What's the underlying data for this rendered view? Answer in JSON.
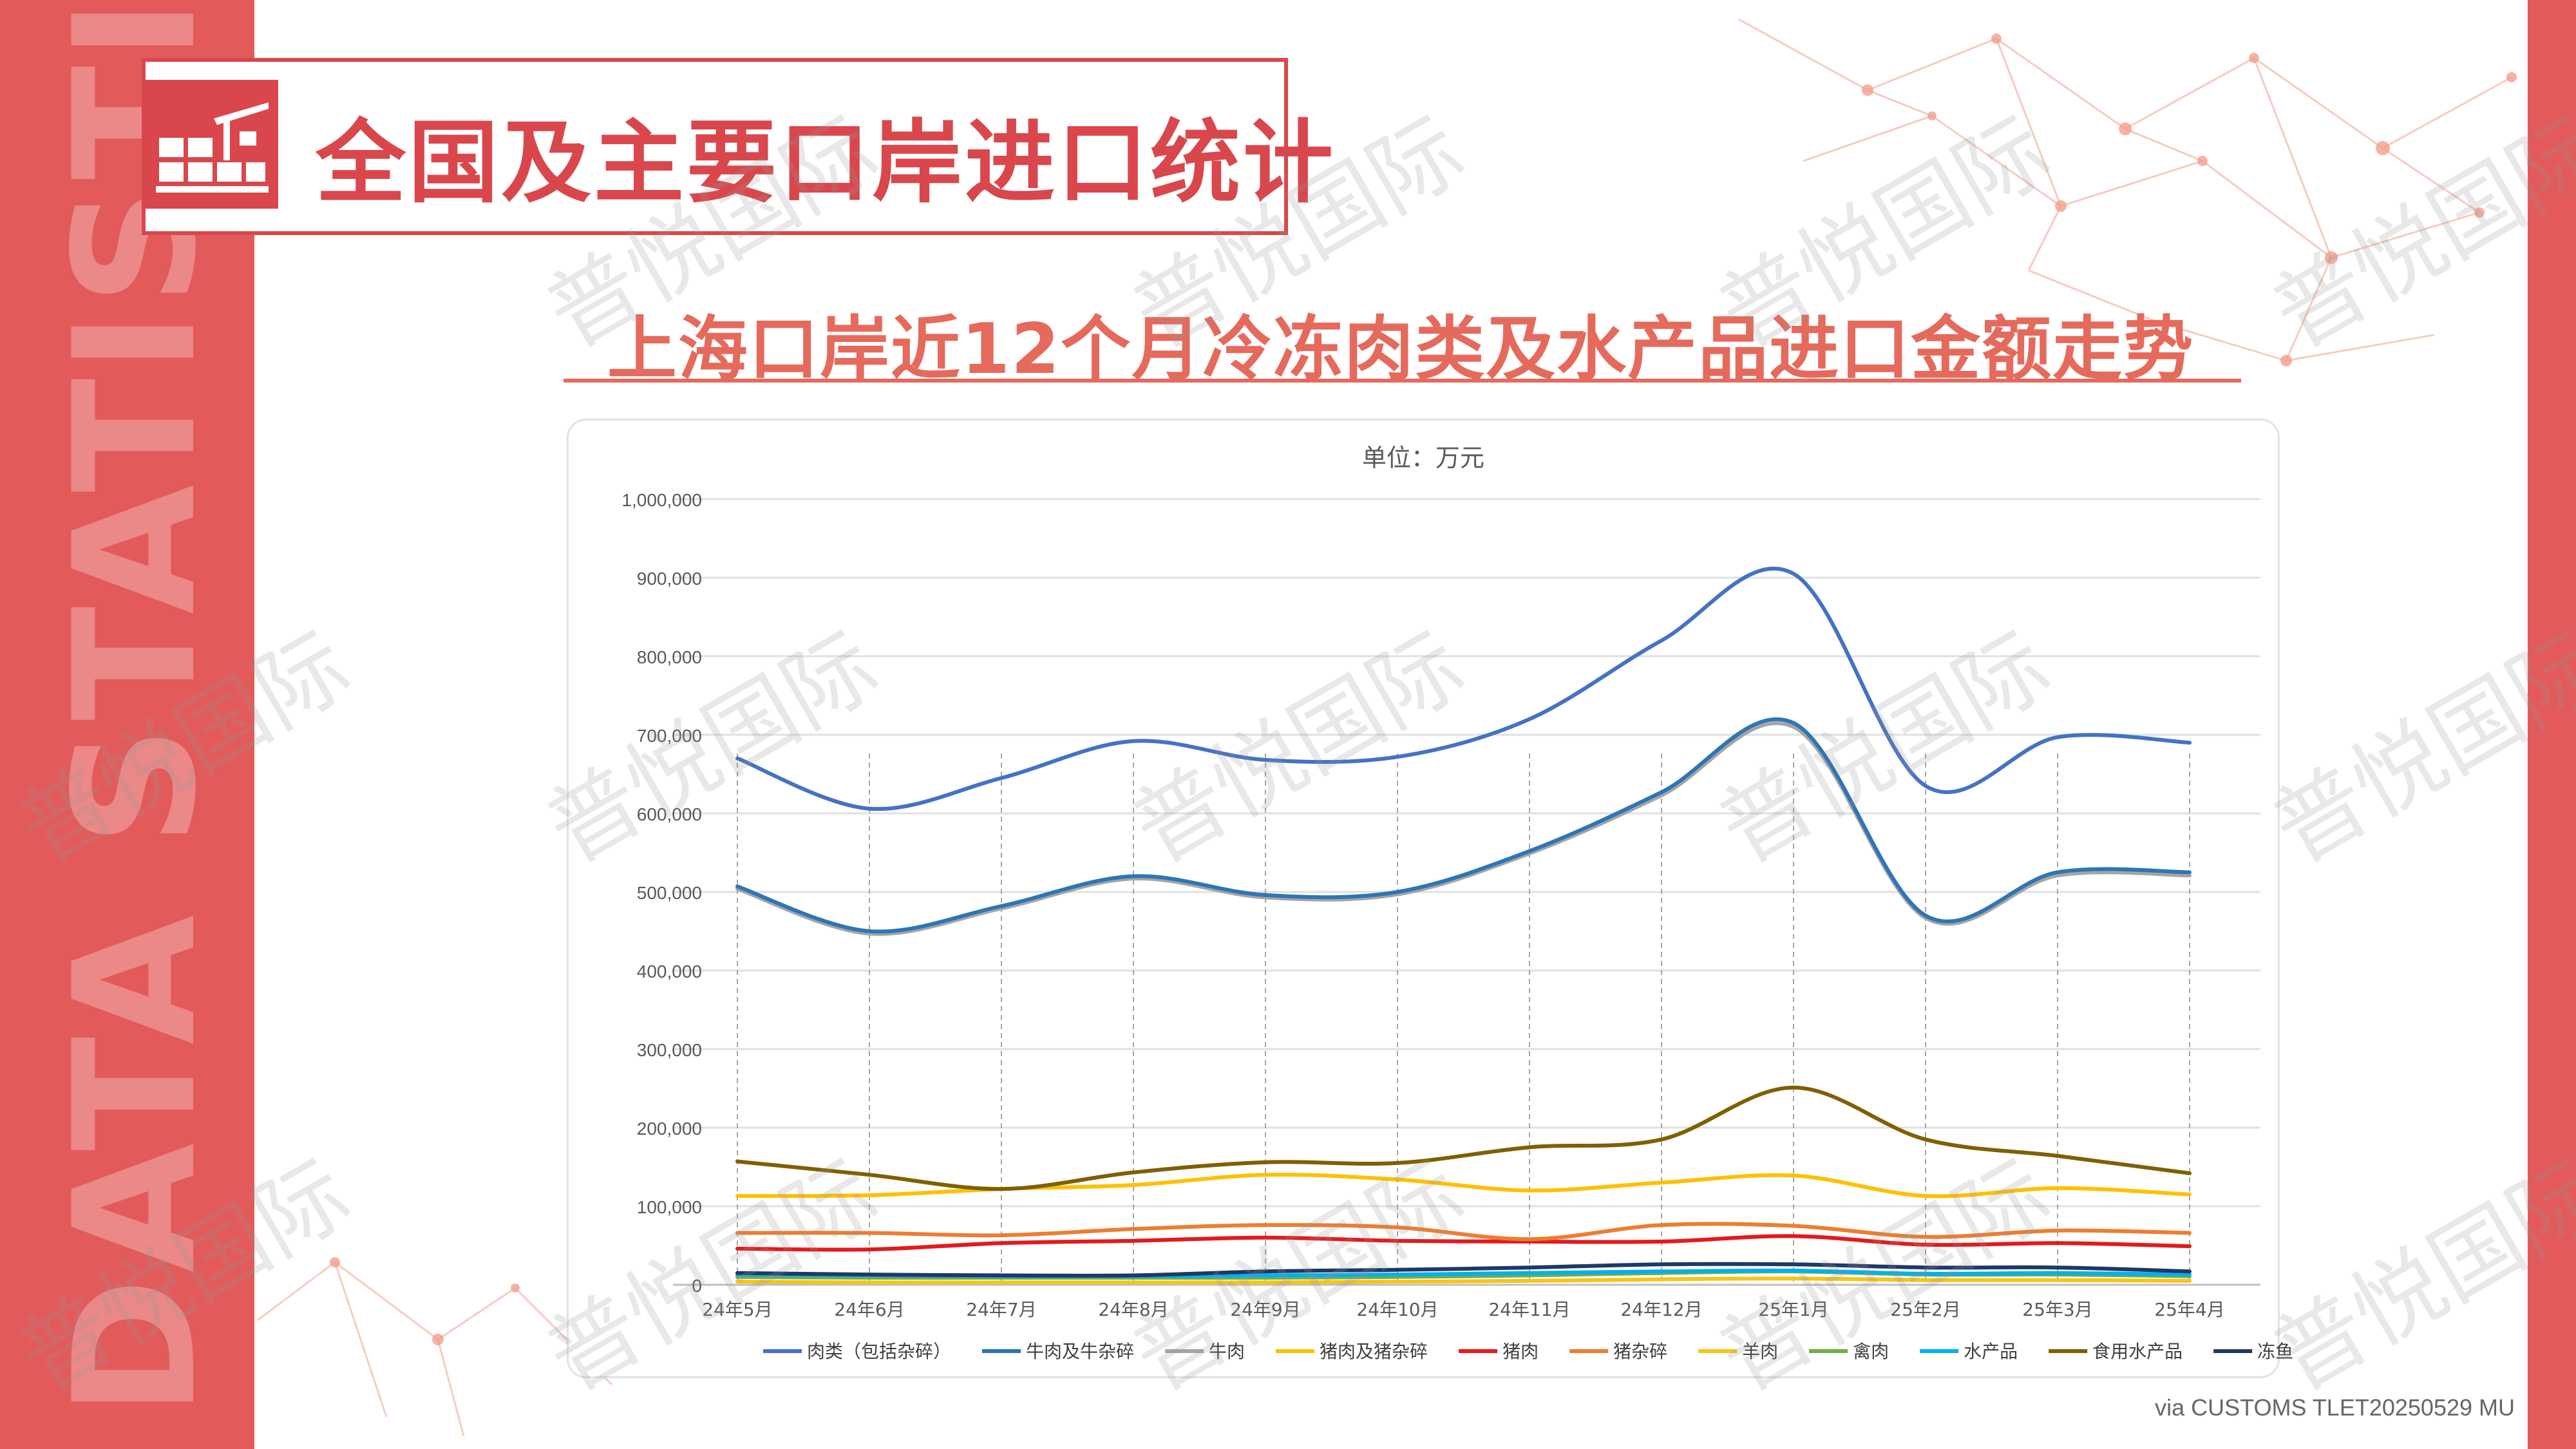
{
  "header": {
    "title": "全国及主要口岸进口统计",
    "side_text": "DATA STATISTICS REPORT"
  },
  "subtitle": "上海口岸近12个月冷冻肉类及水产品进口金额走势",
  "source": "via CUSTOMS TLET20250529 MU",
  "watermark": "普悦国际",
  "colors": {
    "accent": "#e35a5a",
    "title_red": "#d9474c",
    "subtitle": "#e56a5c"
  },
  "chart_data": {
    "type": "line",
    "title": "单位：万元",
    "ylim": [
      0,
      1000000
    ],
    "y_ticks": [
      "0",
      "100,000",
      "200,000",
      "300,000",
      "400,000",
      "500,000",
      "600,000",
      "700,000",
      "800,000",
      "900,000",
      "1,000,000"
    ],
    "categories": [
      "24年5月",
      "24年6月",
      "24年7月",
      "24年8月",
      "24年9月",
      "24年10月",
      "24年11月",
      "24年12月",
      "25年1月",
      "25年2月",
      "25年3月",
      "25年4月"
    ],
    "grid": true,
    "legend_position": "bottom",
    "series": [
      {
        "name": "肉类（包括杂碎）",
        "color": "#4472c4",
        "values": [
          670000,
          606000,
          645000,
          692000,
          668000,
          672000,
          720000,
          820000,
          905000,
          635000,
          697000,
          690000
        ]
      },
      {
        "name": "牛肉及牛杂碎",
        "color": "#2e75b6",
        "values": [
          507000,
          450000,
          482000,
          520000,
          496000,
          500000,
          552000,
          627000,
          715000,
          470000,
          525000,
          525000
        ]
      },
      {
        "name": "牛肉",
        "color": "#a5a5a5",
        "values": [
          504000,
          447000,
          479000,
          517000,
          493000,
          497000,
          549000,
          623000,
          710000,
          467000,
          521000,
          521000
        ]
      },
      {
        "name": "猪肉及猪杂碎",
        "color": "#ffc000",
        "values": [
          113000,
          114000,
          122000,
          127000,
          140000,
          134000,
          120000,
          130000,
          139000,
          113000,
          123000,
          115000
        ]
      },
      {
        "name": "猪肉",
        "color": "#e31a1c",
        "values": [
          46000,
          45000,
          53000,
          56000,
          60000,
          56000,
          55000,
          55000,
          62000,
          51000,
          53000,
          49000
        ]
      },
      {
        "name": "猪杂碎",
        "color": "#ed7d31",
        "values": [
          66000,
          66000,
          63000,
          71000,
          76000,
          73000,
          58000,
          76000,
          75000,
          61000,
          69000,
          66000
        ]
      },
      {
        "name": "羊肉",
        "color": "#f5c518",
        "values": [
          4000,
          3000,
          3000,
          3000,
          3000,
          4000,
          5000,
          7000,
          8000,
          6000,
          6000,
          5000
        ]
      },
      {
        "name": "禽肉",
        "color": "#70ad47",
        "values": [
          10000,
          9000,
          9000,
          9000,
          9000,
          10000,
          12000,
          15000,
          17000,
          13000,
          13000,
          11000
        ]
      },
      {
        "name": "水产品",
        "color": "#00b0f0",
        "values": [
          13000,
          12000,
          11000,
          11000,
          12000,
          13000,
          15000,
          17000,
          18000,
          14000,
          15000,
          13000
        ]
      },
      {
        "name": "食用水产品",
        "color": "#7f6000",
        "values": [
          157000,
          140000,
          122000,
          143000,
          156000,
          155000,
          175000,
          185000,
          251000,
          185000,
          164000,
          142000
        ]
      },
      {
        "name": "冻鱼",
        "color": "#203864",
        "values": [
          15000,
          13000,
          12000,
          12000,
          17000,
          19000,
          22000,
          26000,
          26000,
          22000,
          22000,
          17000
        ]
      }
    ]
  }
}
